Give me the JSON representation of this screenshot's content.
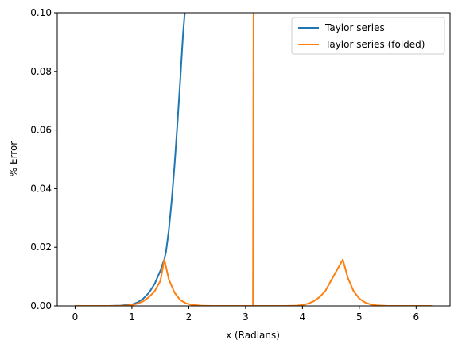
{
  "chart_data": {
    "type": "line",
    "title": "",
    "xlabel": "x (Radians)",
    "ylabel": "% Error",
    "xlim": [
      -0.314,
      6.597
    ],
    "ylim": [
      0,
      0.1
    ],
    "xticks": [
      "0",
      "1",
      "2",
      "3",
      "4",
      "5",
      "6"
    ],
    "yticks": [
      "0.00",
      "0.02",
      "0.04",
      "0.06",
      "0.08",
      "0.10"
    ],
    "grid": false,
    "legend_position": "top-right",
    "series": [
      {
        "name": "Taylor series",
        "color": "#1f77b4",
        "x": [
          0.0,
          0.2,
          0.4,
          0.6,
          0.8,
          1.0,
          1.1,
          1.2,
          1.3,
          1.4,
          1.5,
          1.57,
          1.6,
          1.65,
          1.7,
          1.75,
          1.8,
          1.85,
          1.9,
          1.93
        ],
        "y": [
          0.0,
          0.0,
          0.0,
          0.0,
          0.0001,
          0.0005,
          0.0012,
          0.0025,
          0.0045,
          0.0075,
          0.012,
          0.0159,
          0.0185,
          0.026,
          0.036,
          0.048,
          0.062,
          0.077,
          0.093,
          0.1
        ]
      },
      {
        "name": "Taylor series (folded)",
        "color": "#ff7f0e",
        "x": [
          0.0,
          0.4,
          0.7,
          0.9,
          1.0,
          1.1,
          1.2,
          1.3,
          1.4,
          1.5,
          1.57,
          1.65,
          1.75,
          1.85,
          1.95,
          2.05,
          2.2,
          2.4,
          2.7,
          3.0,
          3.13,
          3.14,
          3.14,
          3.15,
          3.4,
          3.7,
          3.9,
          4.0,
          4.1,
          4.2,
          4.3,
          4.4,
          4.5,
          4.6,
          4.71,
          4.8,
          4.9,
          5.0,
          5.1,
          5.2,
          5.3,
          5.5,
          5.8,
          6.1,
          6.28
        ],
        "y": [
          0.0,
          0.0,
          0.0,
          0.0001,
          0.0003,
          0.0008,
          0.0016,
          0.003,
          0.005,
          0.0085,
          0.0158,
          0.009,
          0.0045,
          0.002,
          0.0009,
          0.0004,
          0.0001,
          0.0,
          0.0,
          0.0,
          0.0,
          0.1,
          0.0,
          0.0,
          0.0,
          0.0,
          0.0001,
          0.0003,
          0.0008,
          0.0016,
          0.003,
          0.005,
          0.0085,
          0.012,
          0.0158,
          0.0095,
          0.005,
          0.0025,
          0.0012,
          0.0005,
          0.0002,
          0.0,
          0.0,
          0.0,
          0.0
        ]
      }
    ]
  }
}
